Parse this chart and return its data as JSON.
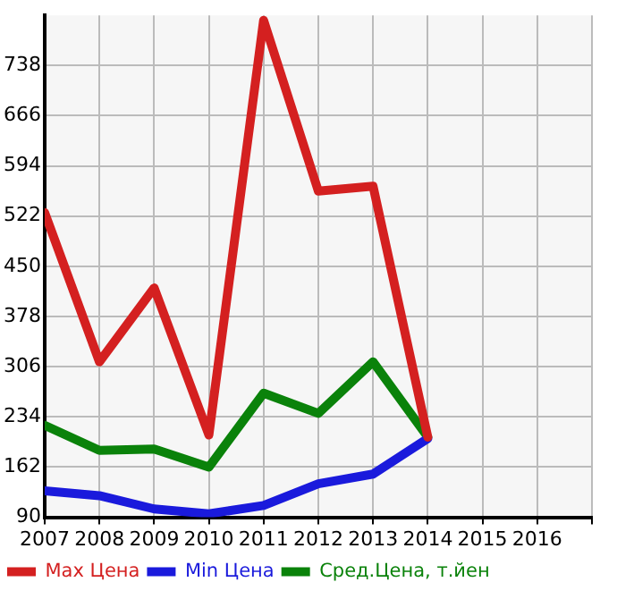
{
  "chart_data": {
    "type": "line",
    "x": [
      2007,
      2008,
      2009,
      2010,
      2011,
      2012,
      2013,
      2014
    ],
    "series": [
      {
        "name": "Max Цена",
        "color": "#d42020",
        "values": [
          527,
          313,
          419,
          208,
          803,
          558,
          565,
          205
        ]
      },
      {
        "name": "Min Цена",
        "color": "#1a1adc",
        "values": [
          128,
          121,
          102,
          95,
          107,
          138,
          152,
          203
        ]
      },
      {
        "name": "Сред.Цена, т.йен",
        "color": "#0a820a",
        "values": [
          222,
          186,
          188,
          162,
          268,
          239,
          313,
          205
        ]
      }
    ],
    "xlim": [
      2007,
      2017
    ],
    "xticks": [
      2007,
      2008,
      2009,
      2010,
      2011,
      2012,
      2013,
      2014,
      2015,
      2016,
      {
        "value": 2017,
        "label": null
      }
    ],
    "ylim": [
      90,
      810
    ],
    "yticks": [
      90,
      162,
      234,
      306,
      378,
      450,
      522,
      594,
      666,
      738
    ],
    "grid": true,
    "legend": "bottom",
    "marker": "none",
    "line_style": "solid"
  }
}
